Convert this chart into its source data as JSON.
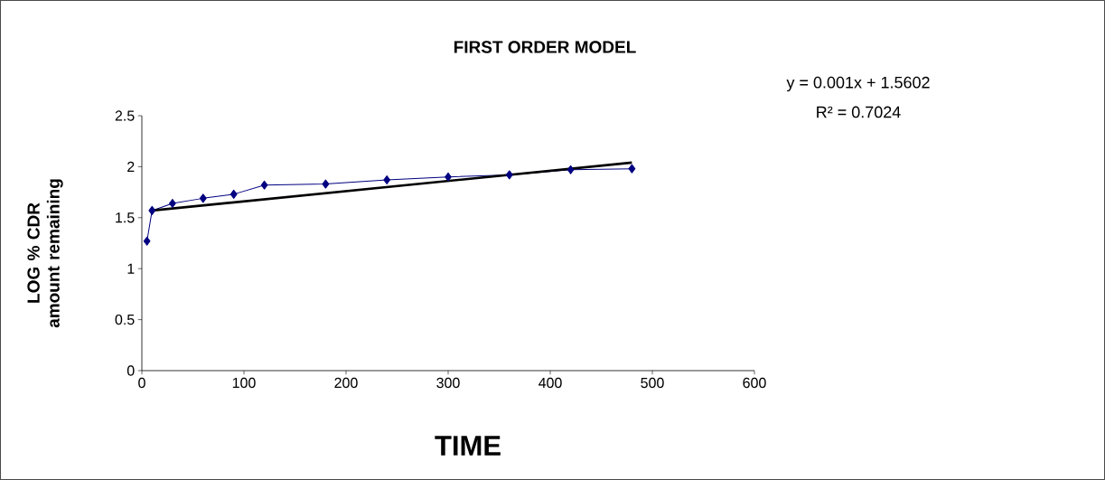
{
  "chart_data": {
    "type": "line",
    "title": "FIRST ORDER MODEL",
    "xlabel": "TIME",
    "ylabel": "LOG % CDR amount remaining",
    "annotations": [
      "y = 0.001x + 1.5602",
      "R² = 0.7024"
    ],
    "series": [
      {
        "color": "#000080",
        "marker": "diamond",
        "x": [
          5,
          10,
          30,
          60,
          90,
          120,
          180,
          240,
          300,
          360,
          420,
          480
        ],
        "values": [
          1.27,
          1.57,
          1.64,
          1.69,
          1.73,
          1.82,
          1.83,
          1.87,
          1.9,
          1.92,
          1.97,
          1.98
        ]
      },
      {
        "color": "#000000",
        "marker": "none",
        "x": [
          10,
          480
        ],
        "values": [
          1.57,
          2.04
        ]
      }
    ],
    "xlim": [
      0,
      600
    ],
    "ylim": [
      0,
      2.5
    ],
    "xticks": [
      0,
      100,
      200,
      300,
      400,
      500,
      600
    ],
    "yticks": [
      0,
      0.5,
      1,
      1.5,
      2,
      2.5
    ],
    "grid": false,
    "line_style": "solid"
  }
}
